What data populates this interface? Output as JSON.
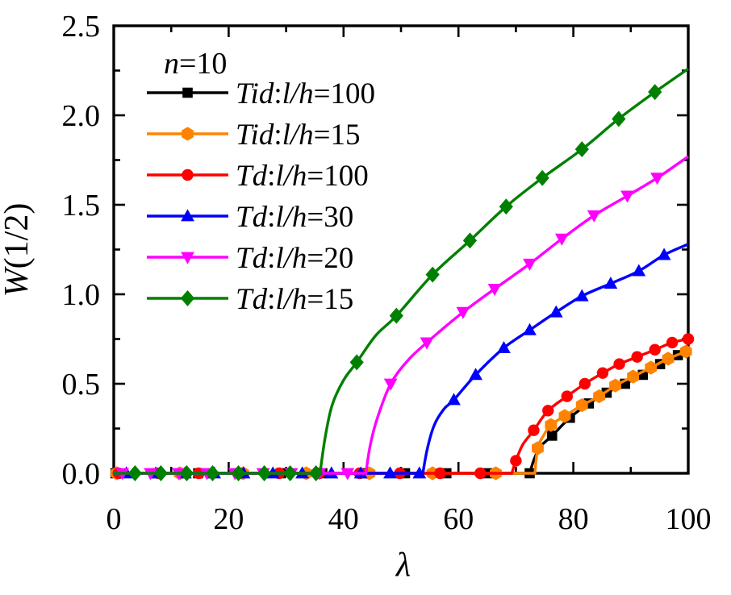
{
  "figure": {
    "background": "#ffffff",
    "frame_color": "#000000",
    "text_color": "#000000"
  },
  "annotation": {
    "text": "n=10",
    "parts": [
      [
        "n",
        1
      ],
      [
        "=10",
        0
      ]
    ]
  },
  "axes": {
    "x": {
      "label": "λ",
      "range": [
        0,
        100
      ],
      "major_ticks": [
        0,
        20,
        40,
        60,
        80,
        100
      ],
      "tick_labels": [
        "0",
        "20",
        "40",
        "60",
        "80",
        "100"
      ],
      "minor_ticks": [
        10,
        30,
        50,
        70,
        90
      ]
    },
    "y": {
      "label": "W(1/2)",
      "label_parts": [
        [
          "W",
          1
        ],
        [
          "(1/2)",
          0
        ]
      ],
      "range": [
        0,
        2.5
      ],
      "major_ticks": [
        0,
        0.5,
        1.0,
        1.5,
        2.0,
        2.5
      ],
      "tick_labels": [
        "0.0",
        "0.5",
        "1.0",
        "1.5",
        "2.0",
        "2.5"
      ],
      "minor_step": 0.25
    },
    "grid": false,
    "ticks_inside": true
  },
  "legend": {
    "position": "upper-left-inside"
  },
  "chart_data": {
    "type": "line",
    "xlabel": "λ",
    "ylabel": "W(1/2)",
    "xlim": [
      0,
      100
    ],
    "ylim": [
      0,
      2.5
    ],
    "series": [
      {
        "name": "Tid:l/h=100",
        "label_parts": [
          [
            "Tid",
            1
          ],
          [
            ":",
            0
          ],
          [
            "l/h",
            1
          ],
          [
            "=100",
            0
          ]
        ],
        "color": "#000000",
        "marker": "square",
        "critical_lambda": 72.5,
        "curve": [
          [
            0,
            0
          ],
          [
            72.4,
            0
          ],
          [
            73.2,
            0.08
          ],
          [
            74.3,
            0.15
          ],
          [
            76.3,
            0.21
          ],
          [
            79.4,
            0.31
          ],
          [
            82.7,
            0.39
          ],
          [
            85.8,
            0.45
          ],
          [
            89,
            0.5
          ],
          [
            92.1,
            0.55
          ],
          [
            95.1,
            0.61
          ],
          [
            98.2,
            0.66
          ],
          [
            100,
            0.7
          ]
        ],
        "markers": [
          [
            0.3,
            0
          ],
          [
            7.5,
            0
          ],
          [
            14.7,
            0
          ],
          [
            21.9,
            0
          ],
          [
            29.1,
            0
          ],
          [
            36.3,
            0
          ],
          [
            43.5,
            0
          ],
          [
            50.7,
            0
          ],
          [
            57.9,
            0
          ],
          [
            65.1,
            0
          ],
          [
            72.4,
            0
          ],
          [
            76.3,
            0.21
          ],
          [
            79.4,
            0.31
          ],
          [
            82.7,
            0.39
          ],
          [
            85.8,
            0.45
          ],
          [
            89,
            0.5
          ],
          [
            92.1,
            0.55
          ],
          [
            95.1,
            0.61
          ],
          [
            98.2,
            0.66
          ]
        ]
      },
      {
        "name": "Tid:l/h=15",
        "label_parts": [
          [
            "Tid",
            1
          ],
          [
            ":",
            0
          ],
          [
            "l/h",
            1
          ],
          [
            "=15",
            0
          ]
        ],
        "color": "#FF8300",
        "marker": "hexagon",
        "critical_lambda": 73.3,
        "curve": [
          [
            0,
            0
          ],
          [
            73.3,
            0
          ],
          [
            73.8,
            0.14
          ],
          [
            74.8,
            0.21
          ],
          [
            76.1,
            0.27
          ],
          [
            78.5,
            0.32
          ],
          [
            81.5,
            0.38
          ],
          [
            84.5,
            0.43
          ],
          [
            87.3,
            0.49
          ],
          [
            90.4,
            0.54
          ],
          [
            93.5,
            0.59
          ],
          [
            96.5,
            0.64
          ],
          [
            99.6,
            0.68
          ],
          [
            100,
            0.69
          ]
        ],
        "markers": [
          [
            0.5,
            0
          ],
          [
            11.5,
            0
          ],
          [
            22.5,
            0
          ],
          [
            33.5,
            0
          ],
          [
            44.5,
            0
          ],
          [
            55.5,
            0
          ],
          [
            66.5,
            0
          ],
          [
            73.8,
            0.14
          ],
          [
            76.1,
            0.27
          ],
          [
            78.5,
            0.32
          ],
          [
            81.5,
            0.38
          ],
          [
            84.5,
            0.43
          ],
          [
            87.3,
            0.49
          ],
          [
            90.4,
            0.54
          ],
          [
            93.5,
            0.59
          ],
          [
            96.5,
            0.64
          ],
          [
            99.6,
            0.68
          ]
        ]
      },
      {
        "name": "Td:l/h=100",
        "label_parts": [
          [
            "Td",
            1
          ],
          [
            ":",
            0
          ],
          [
            "l/h",
            1
          ],
          [
            "=100",
            0
          ]
        ],
        "color": "#FF0000",
        "marker": "circle",
        "critical_lambda": 69.3,
        "curve": [
          [
            0,
            0
          ],
          [
            69.3,
            0
          ],
          [
            70,
            0.07
          ],
          [
            71.2,
            0.16
          ],
          [
            73.1,
            0.24
          ],
          [
            75.6,
            0.35
          ],
          [
            78.9,
            0.43
          ],
          [
            82,
            0.5
          ],
          [
            85.1,
            0.56
          ],
          [
            88,
            0.61
          ],
          [
            91.1,
            0.65
          ],
          [
            94.2,
            0.69
          ],
          [
            97.2,
            0.73
          ],
          [
            100,
            0.75
          ]
        ],
        "markers": [
          [
            0.8,
            0
          ],
          [
            7.8,
            0
          ],
          [
            14.8,
            0
          ],
          [
            21.8,
            0
          ],
          [
            28.8,
            0
          ],
          [
            35.8,
            0
          ],
          [
            42.8,
            0
          ],
          [
            49.8,
            0
          ],
          [
            56.8,
            0
          ],
          [
            63.8,
            0
          ],
          [
            70,
            0.07
          ],
          [
            73.1,
            0.24
          ],
          [
            75.6,
            0.35
          ],
          [
            78.9,
            0.43
          ],
          [
            82,
            0.5
          ],
          [
            85.1,
            0.56
          ],
          [
            88,
            0.61
          ],
          [
            91.1,
            0.65
          ],
          [
            94.2,
            0.69
          ],
          [
            97.2,
            0.73
          ],
          [
            100,
            0.75
          ]
        ]
      },
      {
        "name": "Td:l/h=30",
        "label_parts": [
          [
            "Td",
            1
          ],
          [
            ":",
            0
          ],
          [
            "l/h",
            1
          ],
          [
            "=30",
            0
          ]
        ],
        "color": "#0000FF",
        "marker": "triangle-up",
        "critical_lambda": 53.8,
        "curve": [
          [
            0,
            0
          ],
          [
            53.8,
            0
          ],
          [
            54.6,
            0.14
          ],
          [
            55.8,
            0.27
          ],
          [
            57.5,
            0.36
          ],
          [
            59.2,
            0.41
          ],
          [
            63,
            0.55
          ],
          [
            67.9,
            0.7
          ],
          [
            72.4,
            0.8
          ],
          [
            77,
            0.9
          ],
          [
            81.5,
            0.99
          ],
          [
            86.5,
            1.06
          ],
          [
            91.4,
            1.13
          ],
          [
            95.8,
            1.22
          ],
          [
            100,
            1.28
          ]
        ],
        "markers": [
          [
            2.2,
            0
          ],
          [
            7.3,
            0
          ],
          [
            12.4,
            0
          ],
          [
            17.5,
            0
          ],
          [
            22.6,
            0
          ],
          [
            27.7,
            0
          ],
          [
            32.8,
            0
          ],
          [
            37.9,
            0
          ],
          [
            43,
            0
          ],
          [
            48.1,
            0
          ],
          [
            53.2,
            0
          ],
          [
            59.2,
            0.41
          ],
          [
            63,
            0.55
          ],
          [
            67.9,
            0.7
          ],
          [
            72.4,
            0.8
          ],
          [
            77,
            0.9
          ],
          [
            81.5,
            0.99
          ],
          [
            86.5,
            1.06
          ],
          [
            91.4,
            1.13
          ],
          [
            95.8,
            1.22
          ]
        ]
      },
      {
        "name": "Td:l/h=20",
        "label_parts": [
          [
            "Td",
            1
          ],
          [
            ":",
            0
          ],
          [
            "l/h",
            1
          ],
          [
            "=20",
            0
          ]
        ],
        "color": "#FF00FF",
        "marker": "triangle-down",
        "critical_lambda": 43.9,
        "curve": [
          [
            0,
            0
          ],
          [
            43.9,
            0
          ],
          [
            44.6,
            0.15
          ],
          [
            45.9,
            0.31
          ],
          [
            48.2,
            0.5
          ],
          [
            51.2,
            0.63
          ],
          [
            54.5,
            0.73
          ],
          [
            60.8,
            0.9
          ],
          [
            66.3,
            1.03
          ],
          [
            72.4,
            1.17
          ],
          [
            78,
            1.31
          ],
          [
            83.6,
            1.44
          ],
          [
            89.4,
            1.55
          ],
          [
            94.6,
            1.65
          ],
          [
            100,
            1.77
          ]
        ],
        "markers": [
          [
            1.5,
            0
          ],
          [
            6.4,
            0
          ],
          [
            11.3,
            0
          ],
          [
            16.2,
            0
          ],
          [
            21.1,
            0
          ],
          [
            26,
            0
          ],
          [
            30.9,
            0
          ],
          [
            35.8,
            0
          ],
          [
            40.7,
            0
          ],
          [
            48.2,
            0.5
          ],
          [
            54.5,
            0.73
          ],
          [
            60.8,
            0.9
          ],
          [
            66.3,
            1.03
          ],
          [
            72.4,
            1.17
          ],
          [
            78,
            1.31
          ],
          [
            83.6,
            1.44
          ],
          [
            89.4,
            1.55
          ],
          [
            94.6,
            1.65
          ]
        ]
      },
      {
        "name": "Td:l/h=15",
        "label_parts": [
          [
            "Td",
            1
          ],
          [
            ":",
            0
          ],
          [
            "l/h",
            1
          ],
          [
            "=15",
            0
          ]
        ],
        "color": "#008000",
        "marker": "diamond",
        "critical_lambda": 35.9,
        "curve": [
          [
            0,
            0
          ],
          [
            35.9,
            0
          ],
          [
            36.8,
            0.2
          ],
          [
            38,
            0.38
          ],
          [
            40,
            0.52
          ],
          [
            42.3,
            0.62
          ],
          [
            45.6,
            0.77
          ],
          [
            49.2,
            0.88
          ],
          [
            55.5,
            1.11
          ],
          [
            62,
            1.3
          ],
          [
            68.3,
            1.49
          ],
          [
            74.6,
            1.65
          ],
          [
            81.5,
            1.81
          ],
          [
            87.9,
            1.98
          ],
          [
            94.2,
            2.13
          ],
          [
            100,
            2.26
          ]
        ],
        "markers": [
          [
            3.7,
            0
          ],
          [
            8.2,
            0
          ],
          [
            12.7,
            0
          ],
          [
            17.2,
            0
          ],
          [
            21.7,
            0
          ],
          [
            26.2,
            0
          ],
          [
            30.7,
            0
          ],
          [
            35.2,
            0
          ],
          [
            42.3,
            0.62
          ],
          [
            49.2,
            0.88
          ],
          [
            55.5,
            1.11
          ],
          [
            62,
            1.3
          ],
          [
            68.3,
            1.49
          ],
          [
            74.6,
            1.65
          ],
          [
            81.5,
            1.81
          ],
          [
            87.9,
            1.98
          ],
          [
            94.2,
            2.13
          ]
        ]
      }
    ]
  }
}
